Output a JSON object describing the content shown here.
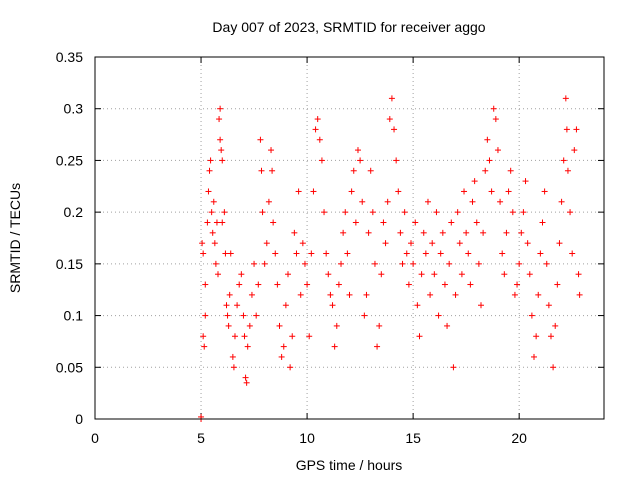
{
  "chart_data": {
    "type": "scatter",
    "title": "Day 007 of 2023, SRMTID for receiver aggo",
    "xlabel": "GPS time / hours",
    "ylabel": "SRMTID / TECUs",
    "xlim": [
      0,
      24
    ],
    "ylim": [
      0,
      0.35
    ],
    "xticks": [
      0,
      5,
      10,
      15,
      20
    ],
    "yticks": [
      0,
      0.05,
      0.1,
      0.15,
      0.2,
      0.25,
      0.3,
      0.35
    ],
    "xtick_labels": [
      "0",
      "5",
      "10",
      "15",
      "20"
    ],
    "ytick_labels": [
      "0",
      "0.05",
      "0.1",
      "0.15",
      "0.2",
      "0.25",
      "0.3",
      "0.35"
    ],
    "grid": true,
    "marker": "+",
    "color": "#ff0000",
    "series": [
      {
        "name": "SRMTID",
        "points": [
          [
            5.0,
            0.0
          ],
          [
            5.0,
            0.002
          ],
          [
            5.05,
            0.17
          ],
          [
            5.1,
            0.16
          ],
          [
            5.1,
            0.08
          ],
          [
            5.15,
            0.07
          ],
          [
            5.2,
            0.1
          ],
          [
            5.2,
            0.13
          ],
          [
            5.3,
            0.19
          ],
          [
            5.35,
            0.22
          ],
          [
            5.4,
            0.24
          ],
          [
            5.45,
            0.25
          ],
          [
            5.5,
            0.2
          ],
          [
            5.55,
            0.18
          ],
          [
            5.6,
            0.21
          ],
          [
            5.65,
            0.17
          ],
          [
            5.7,
            0.15
          ],
          [
            5.75,
            0.19
          ],
          [
            5.8,
            0.14
          ],
          [
            5.85,
            0.29
          ],
          [
            5.9,
            0.3
          ],
          [
            5.9,
            0.27
          ],
          [
            5.95,
            0.26
          ],
          [
            6.0,
            0.25
          ],
          [
            6.0,
            0.19
          ],
          [
            6.1,
            0.2
          ],
          [
            6.15,
            0.16
          ],
          [
            6.2,
            0.11
          ],
          [
            6.25,
            0.1
          ],
          [
            6.3,
            0.09
          ],
          [
            6.35,
            0.12
          ],
          [
            6.4,
            0.16
          ],
          [
            6.5,
            0.06
          ],
          [
            6.55,
            0.05
          ],
          [
            6.6,
            0.08
          ],
          [
            6.7,
            0.11
          ],
          [
            6.8,
            0.13
          ],
          [
            6.9,
            0.14
          ],
          [
            7.0,
            0.1
          ],
          [
            7.05,
            0.08
          ],
          [
            7.1,
            0.04
          ],
          [
            7.15,
            0.035
          ],
          [
            7.2,
            0.07
          ],
          [
            7.3,
            0.09
          ],
          [
            7.4,
            0.12
          ],
          [
            7.5,
            0.15
          ],
          [
            7.6,
            0.1
          ],
          [
            7.7,
            0.13
          ],
          [
            7.8,
            0.27
          ],
          [
            7.85,
            0.24
          ],
          [
            7.9,
            0.2
          ],
          [
            8.0,
            0.15
          ],
          [
            8.1,
            0.17
          ],
          [
            8.2,
            0.21
          ],
          [
            8.3,
            0.26
          ],
          [
            8.35,
            0.24
          ],
          [
            8.4,
            0.19
          ],
          [
            8.5,
            0.16
          ],
          [
            8.6,
            0.13
          ],
          [
            8.7,
            0.09
          ],
          [
            8.8,
            0.06
          ],
          [
            8.9,
            0.07
          ],
          [
            9.0,
            0.11
          ],
          [
            9.1,
            0.14
          ],
          [
            9.2,
            0.05
          ],
          [
            9.3,
            0.08
          ],
          [
            9.4,
            0.18
          ],
          [
            9.5,
            0.16
          ],
          [
            9.6,
            0.22
          ],
          [
            9.7,
            0.12
          ],
          [
            9.8,
            0.17
          ],
          [
            9.9,
            0.15
          ],
          [
            10.0,
            0.13
          ],
          [
            10.1,
            0.08
          ],
          [
            10.2,
            0.16
          ],
          [
            10.3,
            0.22
          ],
          [
            10.4,
            0.28
          ],
          [
            10.5,
            0.29
          ],
          [
            10.6,
            0.27
          ],
          [
            10.7,
            0.25
          ],
          [
            10.8,
            0.2
          ],
          [
            10.9,
            0.16
          ],
          [
            11.0,
            0.14
          ],
          [
            11.1,
            0.12
          ],
          [
            11.2,
            0.11
          ],
          [
            11.3,
            0.07
          ],
          [
            11.4,
            0.09
          ],
          [
            11.5,
            0.13
          ],
          [
            11.6,
            0.15
          ],
          [
            11.7,
            0.18
          ],
          [
            11.8,
            0.2
          ],
          [
            11.9,
            0.16
          ],
          [
            12.0,
            0.12
          ],
          [
            12.1,
            0.22
          ],
          [
            12.2,
            0.24
          ],
          [
            12.3,
            0.19
          ],
          [
            12.4,
            0.26
          ],
          [
            12.5,
            0.25
          ],
          [
            12.6,
            0.21
          ],
          [
            12.7,
            0.1
          ],
          [
            12.8,
            0.12
          ],
          [
            12.9,
            0.18
          ],
          [
            13.0,
            0.24
          ],
          [
            13.1,
            0.2
          ],
          [
            13.2,
            0.15
          ],
          [
            13.3,
            0.07
          ],
          [
            13.4,
            0.09
          ],
          [
            13.5,
            0.14
          ],
          [
            13.6,
            0.19
          ],
          [
            13.7,
            0.17
          ],
          [
            13.8,
            0.21
          ],
          [
            13.9,
            0.29
          ],
          [
            14.0,
            0.31
          ],
          [
            14.1,
            0.28
          ],
          [
            14.2,
            0.25
          ],
          [
            14.3,
            0.22
          ],
          [
            14.4,
            0.18
          ],
          [
            14.5,
            0.15
          ],
          [
            14.6,
            0.2
          ],
          [
            14.7,
            0.16
          ],
          [
            14.8,
            0.13
          ],
          [
            14.9,
            0.17
          ],
          [
            15.0,
            0.15
          ],
          [
            15.1,
            0.19
          ],
          [
            15.2,
            0.11
          ],
          [
            15.3,
            0.08
          ],
          [
            15.4,
            0.14
          ],
          [
            15.5,
            0.18
          ],
          [
            15.6,
            0.16
          ],
          [
            15.7,
            0.21
          ],
          [
            15.8,
            0.12
          ],
          [
            15.9,
            0.17
          ],
          [
            16.0,
            0.14
          ],
          [
            16.1,
            0.2
          ],
          [
            16.2,
            0.1
          ],
          [
            16.3,
            0.16
          ],
          [
            16.4,
            0.18
          ],
          [
            16.5,
            0.13
          ],
          [
            16.6,
            0.09
          ],
          [
            16.7,
            0.15
          ],
          [
            16.8,
            0.19
          ],
          [
            16.9,
            0.05
          ],
          [
            17.0,
            0.12
          ],
          [
            17.1,
            0.2
          ],
          [
            17.2,
            0.17
          ],
          [
            17.3,
            0.14
          ],
          [
            17.4,
            0.22
          ],
          [
            17.5,
            0.18
          ],
          [
            17.6,
            0.16
          ],
          [
            17.7,
            0.13
          ],
          [
            17.8,
            0.21
          ],
          [
            17.9,
            0.23
          ],
          [
            18.0,
            0.19
          ],
          [
            18.1,
            0.15
          ],
          [
            18.2,
            0.11
          ],
          [
            18.3,
            0.18
          ],
          [
            18.4,
            0.24
          ],
          [
            18.5,
            0.27
          ],
          [
            18.6,
            0.25
          ],
          [
            18.7,
            0.22
          ],
          [
            18.8,
            0.3
          ],
          [
            18.9,
            0.29
          ],
          [
            19.0,
            0.26
          ],
          [
            19.1,
            0.21
          ],
          [
            19.2,
            0.16
          ],
          [
            19.3,
            0.14
          ],
          [
            19.4,
            0.18
          ],
          [
            19.5,
            0.22
          ],
          [
            19.6,
            0.24
          ],
          [
            19.7,
            0.2
          ],
          [
            19.8,
            0.12
          ],
          [
            19.9,
            0.13
          ],
          [
            20.0,
            0.15
          ],
          [
            20.1,
            0.18
          ],
          [
            20.2,
            0.2
          ],
          [
            20.3,
            0.23
          ],
          [
            20.4,
            0.17
          ],
          [
            20.5,
            0.14
          ],
          [
            20.6,
            0.1
          ],
          [
            20.7,
            0.06
          ],
          [
            20.8,
            0.08
          ],
          [
            20.9,
            0.12
          ],
          [
            21.0,
            0.16
          ],
          [
            21.1,
            0.19
          ],
          [
            21.2,
            0.22
          ],
          [
            21.3,
            0.15
          ],
          [
            21.4,
            0.11
          ],
          [
            21.5,
            0.08
          ],
          [
            21.6,
            0.05
          ],
          [
            21.7,
            0.09
          ],
          [
            21.8,
            0.13
          ],
          [
            21.9,
            0.17
          ],
          [
            22.0,
            0.21
          ],
          [
            22.1,
            0.25
          ],
          [
            22.2,
            0.31
          ],
          [
            22.25,
            0.28
          ],
          [
            22.3,
            0.24
          ],
          [
            22.4,
            0.2
          ],
          [
            22.5,
            0.16
          ],
          [
            22.6,
            0.26
          ],
          [
            22.7,
            0.28
          ],
          [
            22.8,
            0.14
          ],
          [
            22.85,
            0.12
          ]
        ]
      }
    ]
  }
}
